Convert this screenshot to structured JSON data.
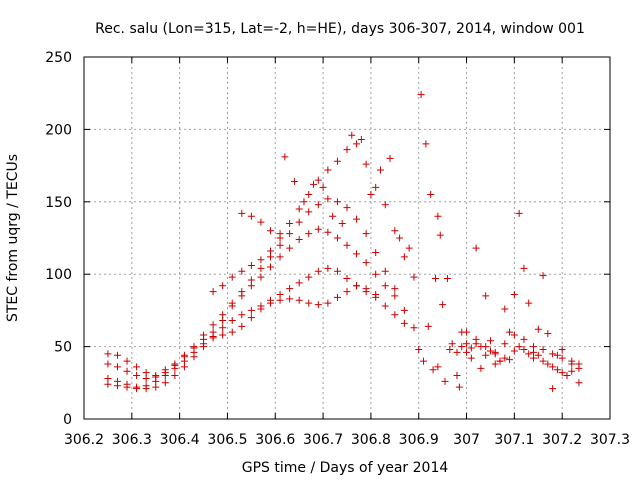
{
  "chart_data": {
    "type": "scatter",
    "title": "Rec. salu (Lon=315, Lat=-2, h=HE), days 306-307, 2014, window 001",
    "xlabel": "GPS time / Days of year 2014",
    "ylabel": "STEC from uqrg / TECUs",
    "xlim": [
      306.2,
      307.3
    ],
    "ylim": [
      0,
      250
    ],
    "xticks": [
      "306.2",
      "306.3",
      "306.4",
      "306.5",
      "306.6",
      "306.7",
      "306.8",
      "306.9",
      "307",
      "307.1",
      "307.2",
      "307.3"
    ],
    "yticks": [
      "0",
      "50",
      "100",
      "150",
      "200",
      "250"
    ],
    "grid": true,
    "marker": "plus",
    "color": "#cc0000",
    "series": [
      {
        "points": [
          [
            306.25,
            45
          ],
          [
            306.27,
            44
          ],
          [
            306.29,
            40
          ],
          [
            306.31,
            36
          ],
          [
            306.33,
            32
          ],
          [
            306.35,
            30
          ],
          [
            306.37,
            34
          ],
          [
            306.39,
            38
          ],
          [
            306.41,
            44
          ],
          [
            306.43,
            49
          ],
          [
            306.45,
            55
          ],
          [
            306.47,
            60
          ],
          [
            306.49,
            68
          ],
          [
            306.51,
            78
          ],
          [
            306.53,
            85
          ],
          [
            306.55,
            92
          ],
          [
            306.57,
            98
          ],
          [
            306.59,
            105
          ],
          [
            306.61,
            112
          ],
          [
            306.63,
            118
          ],
          [
            306.65,
            124
          ],
          [
            306.67,
            128
          ],
          [
            306.69,
            131
          ],
          [
            306.71,
            129
          ],
          [
            306.73,
            125
          ],
          [
            306.75,
            120
          ],
          [
            306.77,
            114
          ],
          [
            306.79,
            108
          ],
          [
            306.81,
            100
          ],
          [
            306.83,
            92
          ],
          [
            306.85,
            85
          ],
          [
            306.87,
            75
          ],
          [
            306.89,
            63
          ]
        ]
      },
      {
        "points": [
          [
            306.25,
            38
          ],
          [
            306.27,
            36
          ],
          [
            306.29,
            33
          ],
          [
            306.31,
            30
          ],
          [
            306.33,
            28
          ],
          [
            306.35,
            29
          ],
          [
            306.37,
            32
          ],
          [
            306.39,
            37
          ],
          [
            306.41,
            43
          ],
          [
            306.43,
            50
          ],
          [
            306.45,
            58
          ],
          [
            306.47,
            65
          ],
          [
            306.49,
            72
          ],
          [
            306.51,
            80
          ],
          [
            306.53,
            88
          ],
          [
            306.55,
            96
          ],
          [
            306.57,
            104
          ],
          [
            306.59,
            112
          ],
          [
            306.61,
            120
          ],
          [
            306.63,
            128
          ],
          [
            306.65,
            136
          ],
          [
            306.67,
            143
          ],
          [
            306.69,
            148
          ],
          [
            306.71,
            152
          ],
          [
            306.73,
            150
          ],
          [
            306.75,
            146
          ],
          [
            306.77,
            138
          ],
          [
            306.79,
            128
          ],
          [
            306.81,
            115
          ],
          [
            306.83,
            102
          ],
          [
            306.85,
            90
          ]
        ]
      },
      {
        "points": [
          [
            306.25,
            28
          ],
          [
            306.27,
            26
          ],
          [
            306.29,
            24
          ],
          [
            306.31,
            22
          ],
          [
            306.33,
            21
          ],
          [
            306.35,
            22
          ],
          [
            306.37,
            25
          ],
          [
            306.39,
            30
          ],
          [
            306.41,
            36
          ],
          [
            306.43,
            43
          ],
          [
            306.45,
            50
          ],
          [
            306.47,
            57
          ],
          [
            306.49,
            63
          ],
          [
            306.51,
            68
          ],
          [
            306.53,
            72
          ],
          [
            306.55,
            75
          ],
          [
            306.57,
            78
          ],
          [
            306.59,
            82
          ],
          [
            306.61,
            86
          ],
          [
            306.63,
            90
          ],
          [
            306.65,
            94
          ],
          [
            306.67,
            98
          ],
          [
            306.69,
            102
          ],
          [
            306.71,
            104
          ],
          [
            306.73,
            102
          ],
          [
            306.75,
            97
          ],
          [
            306.77,
            92
          ],
          [
            306.79,
            88
          ],
          [
            306.81,
            84
          ]
        ]
      },
      {
        "points": [
          [
            306.25,
            24
          ],
          [
            306.27,
            23
          ],
          [
            306.29,
            22
          ],
          [
            306.31,
            21
          ],
          [
            306.33,
            23
          ],
          [
            306.35,
            26
          ],
          [
            306.37,
            30
          ],
          [
            306.39,
            35
          ],
          [
            306.41,
            40
          ],
          [
            306.43,
            46
          ],
          [
            306.45,
            52
          ],
          [
            306.47,
            56
          ],
          [
            306.49,
            58
          ],
          [
            306.51,
            60
          ],
          [
            306.53,
            64
          ],
          [
            306.55,
            70
          ],
          [
            306.57,
            76
          ],
          [
            306.59,
            80
          ],
          [
            306.61,
            82
          ],
          [
            306.63,
            83
          ],
          [
            306.65,
            82
          ],
          [
            306.67,
            80
          ],
          [
            306.69,
            79
          ],
          [
            306.71,
            80
          ],
          [
            306.73,
            84
          ],
          [
            306.75,
            88
          ],
          [
            306.77,
            92
          ],
          [
            306.79,
            90
          ],
          [
            306.81,
            86
          ],
          [
            306.83,
            78
          ],
          [
            306.85,
            72
          ],
          [
            306.87,
            66
          ]
        ]
      },
      {
        "points": [
          [
            306.47,
            88
          ],
          [
            306.49,
            92
          ],
          [
            306.51,
            98
          ],
          [
            306.53,
            102
          ],
          [
            306.55,
            106
          ],
          [
            306.57,
            110
          ],
          [
            306.59,
            116
          ],
          [
            306.61,
            125
          ],
          [
            306.63,
            135
          ],
          [
            306.65,
            145
          ],
          [
            306.67,
            155
          ],
          [
            306.69,
            165
          ],
          [
            306.71,
            172
          ],
          [
            306.73,
            178
          ],
          [
            306.75,
            186
          ],
          [
            306.77,
            190
          ],
          [
            306.79,
            176
          ],
          [
            306.81,
            160
          ],
          [
            306.83,
            148
          ],
          [
            306.85,
            130
          ],
          [
            306.87,
            112
          ],
          [
            306.89,
            98
          ]
        ]
      },
      {
        "points": [
          [
            306.53,
            142
          ],
          [
            306.55,
            140
          ],
          [
            306.57,
            136
          ],
          [
            306.59,
            130
          ],
          [
            306.61,
            128
          ],
          [
            306.62,
            181
          ],
          [
            306.64,
            164
          ],
          [
            306.66,
            150
          ],
          [
            306.68,
            162
          ],
          [
            306.7,
            160
          ],
          [
            306.72,
            140
          ],
          [
            306.74,
            135
          ],
          [
            306.76,
            196
          ],
          [
            306.78,
            193
          ],
          [
            306.8,
            155
          ],
          [
            306.82,
            172
          ],
          [
            306.84,
            180
          ],
          [
            306.86,
            125
          ],
          [
            306.88,
            118
          ],
          [
            306.905,
            224
          ],
          [
            306.915,
            190
          ],
          [
            306.925,
            155
          ],
          [
            306.94,
            140
          ],
          [
            306.945,
            127
          ],
          [
            306.95,
            79
          ],
          [
            306.935,
            97
          ],
          [
            306.96,
            97
          ]
        ]
      },
      {
        "points": [
          [
            306.9,
            48
          ],
          [
            306.91,
            40
          ],
          [
            306.92,
            64
          ],
          [
            306.93,
            34
          ],
          [
            306.94,
            36
          ],
          [
            306.955,
            26
          ],
          [
            306.965,
            48
          ],
          [
            306.97,
            52
          ],
          [
            306.98,
            30
          ],
          [
            306.985,
            22
          ],
          [
            306.99,
            60
          ],
          [
            307.0,
            46
          ],
          [
            307.01,
            42
          ],
          [
            307.02,
            118
          ],
          [
            307.03,
            35
          ],
          [
            307.04,
            85
          ],
          [
            307.05,
            54
          ],
          [
            307.06,
            45
          ],
          [
            307.07,
            40
          ],
          [
            307.08,
            76
          ],
          [
            307.09,
            60
          ],
          [
            307.1,
            86
          ],
          [
            307.11,
            142
          ],
          [
            307.12,
            104
          ],
          [
            307.13,
            80
          ],
          [
            307.14,
            46
          ],
          [
            307.15,
            62
          ],
          [
            307.16,
            99
          ],
          [
            307.17,
            59
          ],
          [
            307.18,
            21
          ],
          [
            307.19,
            44
          ],
          [
            307.2,
            48
          ],
          [
            307.21,
            30
          ],
          [
            307.22,
            38
          ],
          [
            307.235,
            25
          ]
        ]
      },
      {
        "points": [
          [
            306.98,
            46
          ],
          [
            306.99,
            50
          ],
          [
            307.0,
            52
          ],
          [
            307.01,
            49
          ],
          [
            307.02,
            52
          ],
          [
            307.03,
            50
          ],
          [
            307.04,
            44
          ],
          [
            307.05,
            47
          ],
          [
            307.06,
            38
          ],
          [
            307.07,
            40
          ],
          [
            307.08,
            42
          ],
          [
            307.09,
            41
          ],
          [
            307.1,
            47
          ],
          [
            307.11,
            50
          ],
          [
            307.12,
            48
          ],
          [
            307.13,
            45
          ],
          [
            307.14,
            42
          ],
          [
            307.15,
            44
          ],
          [
            307.16,
            40
          ],
          [
            307.17,
            38
          ],
          [
            307.18,
            36
          ],
          [
            307.19,
            34
          ],
          [
            307.2,
            32
          ],
          [
            307.21,
            30
          ],
          [
            307.22,
            33
          ],
          [
            307.235,
            35
          ]
        ]
      },
      {
        "points": [
          [
            307.0,
            60
          ],
          [
            307.02,
            55
          ],
          [
            307.04,
            50
          ],
          [
            307.06,
            46
          ],
          [
            307.08,
            52
          ],
          [
            307.1,
            58
          ],
          [
            307.12,
            55
          ],
          [
            307.14,
            50
          ],
          [
            307.16,
            48
          ],
          [
            307.18,
            45
          ],
          [
            307.2,
            42
          ],
          [
            307.22,
            40
          ],
          [
            307.235,
            38
          ]
        ]
      }
    ]
  }
}
